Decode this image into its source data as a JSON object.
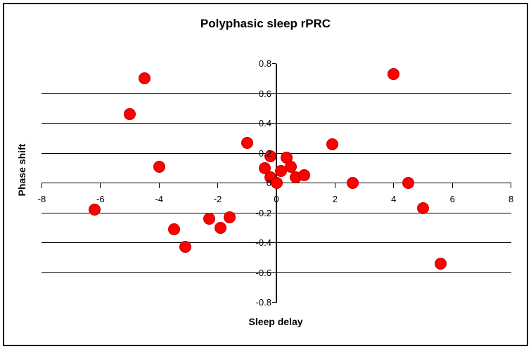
{
  "figure": {
    "background": "#ffffff",
    "border_color": "#000000",
    "text_color": "#000000"
  },
  "chart_data": {
    "type": "scatter",
    "title": "Polyphasic sleep rPRC",
    "xlabel": "Sleep delay",
    "ylabel": "Phase shift",
    "xlim": [
      -8,
      8
    ],
    "ylim": [
      -0.8,
      0.8
    ],
    "legend": "none",
    "grid": "horizontal-only",
    "gridlines_y": [
      0.6,
      0.4,
      0.2,
      -0.2,
      -0.4,
      -0.6
    ],
    "x_ticks": [
      -8,
      -6,
      -4,
      -2,
      0,
      2,
      4,
      6,
      8
    ],
    "x_tick_labels": [
      "-8",
      "-6",
      "-4",
      "-2",
      "0",
      "2",
      "4",
      "6",
      "8"
    ],
    "y_ticks": [
      0.8,
      0.6,
      0.4,
      0.2,
      0,
      -0.2,
      -0.4,
      -0.6,
      -0.8
    ],
    "y_tick_labels": [
      "0.8",
      "0.6",
      "0.4",
      "0.2",
      "0",
      "-0.2",
      "-0.4",
      "-0.6",
      "-0.8"
    ],
    "marker": {
      "shape": "circle",
      "color": "#ff0000",
      "edge_color": "#c00000"
    },
    "points": [
      {
        "x": -6.2,
        "y": -0.18
      },
      {
        "x": -5.0,
        "y": 0.46
      },
      {
        "x": -4.5,
        "y": 0.7
      },
      {
        "x": -4.0,
        "y": 0.11
      },
      {
        "x": -3.5,
        "y": -0.31
      },
      {
        "x": -3.1,
        "y": -0.43
      },
      {
        "x": -2.3,
        "y": -0.24
      },
      {
        "x": -1.9,
        "y": -0.3
      },
      {
        "x": -1.6,
        "y": -0.23
      },
      {
        "x": -1.0,
        "y": 0.27
      },
      {
        "x": -0.4,
        "y": 0.1
      },
      {
        "x": -0.2,
        "y": 0.18
      },
      {
        "x": -0.2,
        "y": 0.04
      },
      {
        "x": 0.0,
        "y": 0.0
      },
      {
        "x": 0.15,
        "y": 0.08
      },
      {
        "x": 0.35,
        "y": 0.17
      },
      {
        "x": 0.5,
        "y": 0.11
      },
      {
        "x": 0.65,
        "y": 0.04
      },
      {
        "x": 0.95,
        "y": 0.05
      },
      {
        "x": 1.9,
        "y": 0.26
      },
      {
        "x": 2.6,
        "y": 0.0
      },
      {
        "x": 4.0,
        "y": 0.73
      },
      {
        "x": 4.5,
        "y": 0.0
      },
      {
        "x": 5.0,
        "y": -0.17
      },
      {
        "x": 5.6,
        "y": -0.54
      }
    ]
  }
}
